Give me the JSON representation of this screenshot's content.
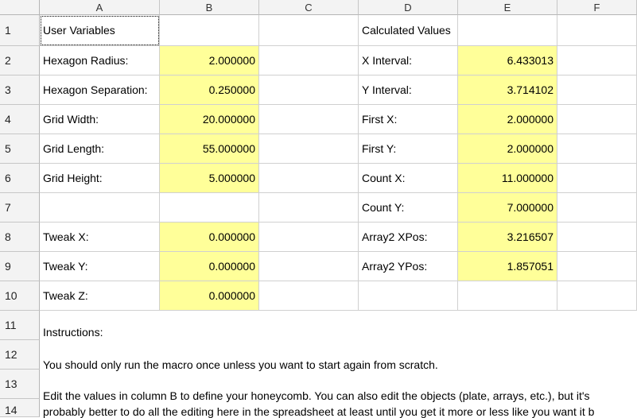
{
  "columns": [
    "A",
    "B",
    "C",
    "D",
    "E",
    "F"
  ],
  "rows": [
    "1",
    "2",
    "3",
    "4",
    "5",
    "6",
    "7",
    "8",
    "9",
    "10",
    "11",
    "12",
    "13",
    "14"
  ],
  "cells": {
    "A1": "User Variables",
    "D1": "Calculated Values",
    "A2": "Hexagon Radius:",
    "B2": "2.000000",
    "D2": "X Interval:",
    "E2": "6.433013",
    "A3": "Hexagon Separation:",
    "B3": "0.250000",
    "D3": "Y Interval:",
    "E3": "3.714102",
    "A4": "Grid Width:",
    "B4": "20.000000",
    "D4": "First X:",
    "E4": "2.000000",
    "A5": "Grid Length:",
    "B5": "55.000000",
    "D5": "First Y:",
    "E5": "2.000000",
    "A6": "Grid Height:",
    "B6": "5.000000",
    "D6": "Count X:",
    "E6": "11.000000",
    "D7": "Count Y:",
    "E7": "7.000000",
    "A8": "Tweak X:",
    "B8": "0.000000",
    "D8": "Array2 XPos:",
    "E8": "3.216507",
    "A9": "Tweak Y:",
    "B9": "0.000000",
    "D9": "Array2 YPos:",
    "E9": "1.857051",
    "A10": "Tweak Z:",
    "B10": "0.000000"
  },
  "instructions": {
    "line1": "Instructions:",
    "line2": "You should only run the macro once unless you want to start again from scratch.",
    "line3": "Edit the values in column B to define your honeycomb.  You can also edit the objects (plate, arrays, etc.), but it's",
    "line4": "probably better to do all the editing here in the spreadsheet at least until you get it more or less like you want it b"
  },
  "colors": {
    "input_fill": "#ffff99",
    "header_bg": "#f3f3f3"
  }
}
